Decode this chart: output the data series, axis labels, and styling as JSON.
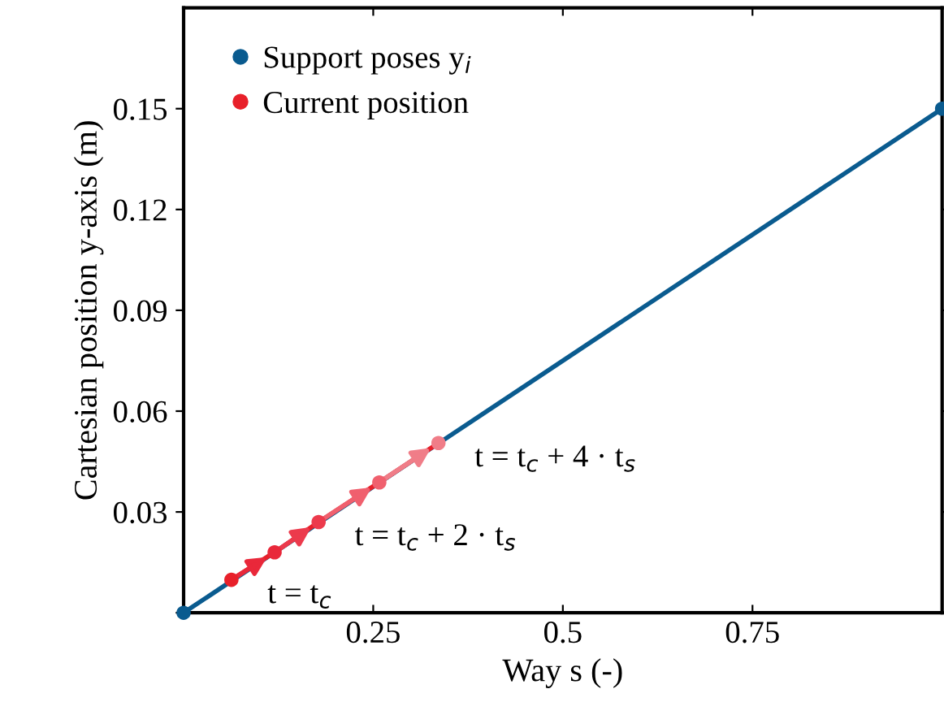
{
  "chart_data": {
    "type": "line",
    "xlabel": "Way s (-)",
    "ylabel": "Cartesian position y-axis (m)",
    "xlim": [
      0,
      1
    ],
    "xticks": [
      {
        "value": 0,
        "label": null
      },
      0.25,
      0.5,
      0.75,
      {
        "value": 1,
        "label": null
      }
    ],
    "ylim": [
      0,
      0.18
    ],
    "yticks": [
      {
        "value": 0,
        "label": null
      },
      0.03,
      0.06,
      0.09,
      0.12,
      0.15
    ],
    "grid": false,
    "legend": "top left",
    "marker": "circle",
    "series": [
      {
        "name": "Support poses y$_{i}$",
        "x": [
          0,
          1
        ],
        "values": [
          0,
          0.15
        ],
        "color": "#0a5b8f"
      },
      {
        "name": "Current position",
        "x": [
          0.063,
          0.12,
          0.178,
          0.258,
          0.336
        ],
        "values": [
          0.0098,
          0.018,
          0.027,
          0.0388,
          0.0505
        ],
        "color": "#e8202a",
        "colors": [
          "#e8202a",
          "#e9283a",
          "#ec3a4c",
          "#f0606e",
          "#f07d88"
        ]
      }
    ],
    "annotations": [
      {
        "text": "t = t$_{c}$",
        "x": 0.063,
        "y": 0.0098
      },
      {
        "text": "t = t$_{c}$ + 2 · t$_{s}$",
        "x": 0.178,
        "y": 0.027
      },
      {
        "text": "t = t$_{c}$ + 4 · t$_{s}$",
        "x": 0.336,
        "y": 0.0505
      }
    ]
  }
}
